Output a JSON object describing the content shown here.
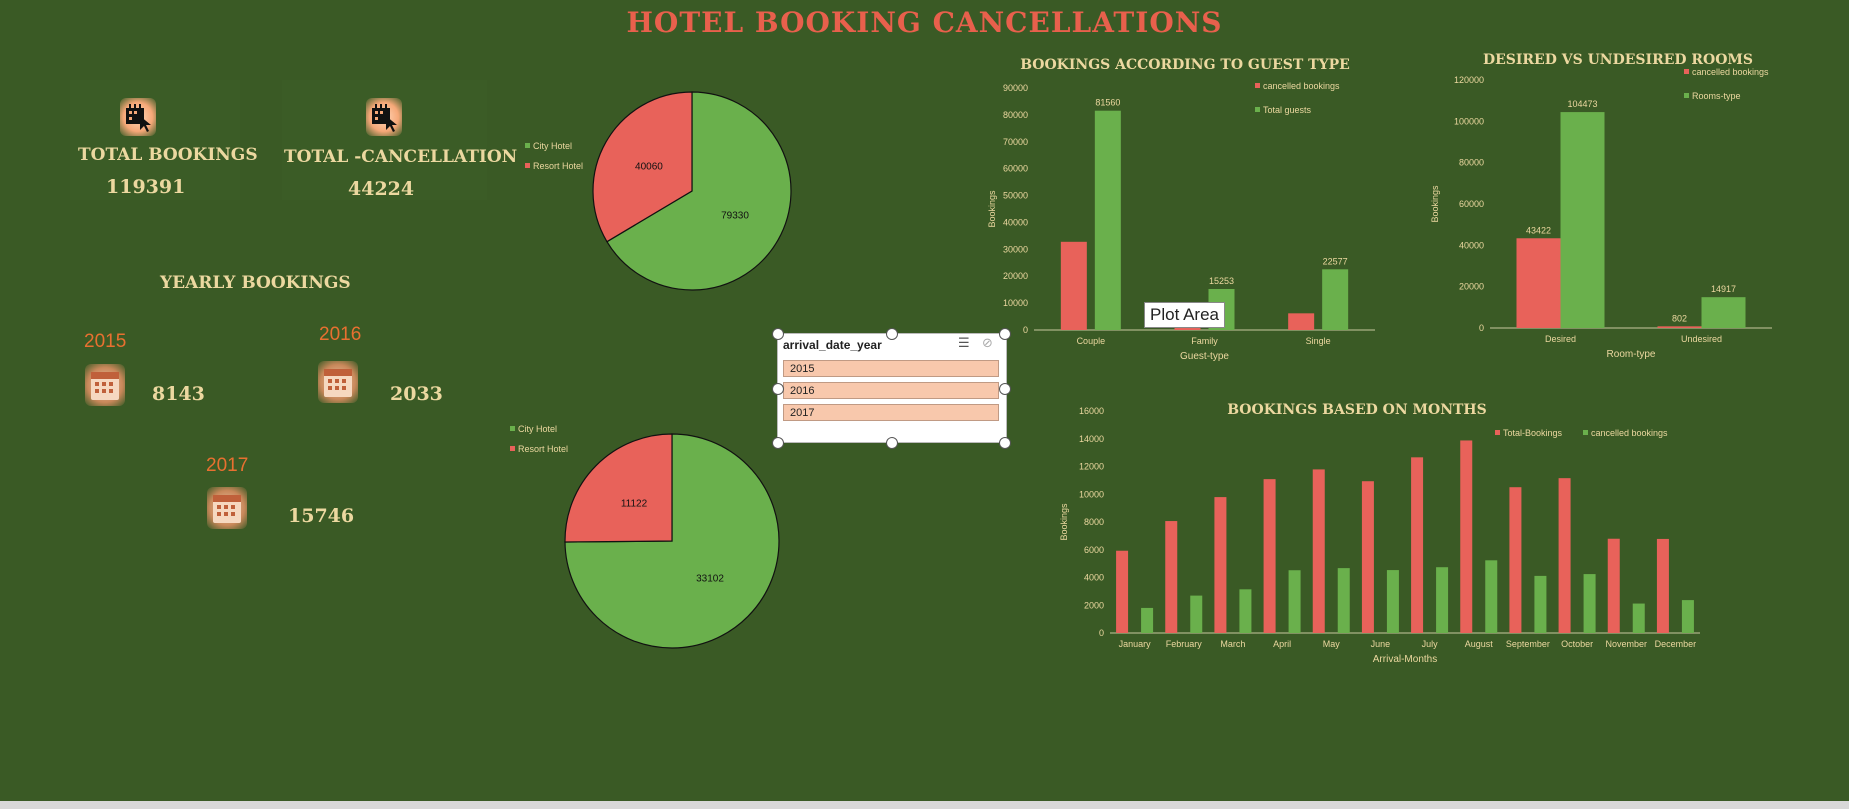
{
  "title": "HOTEL BOOKING CANCELLATIONS",
  "kpis": {
    "total_bookings_label": "TOTAL BOOKINGS",
    "total_bookings_value": "119391",
    "total_cancellation_label": "TOTAL -CANCELLATION",
    "total_cancellation_value": "44224"
  },
  "yearly": {
    "title": "YEARLY BOOKINGS",
    "items": [
      {
        "year": "2015",
        "value": "8143"
      },
      {
        "year": "2016",
        "value": "2033"
      },
      {
        "year": "2017",
        "value": "15746"
      }
    ]
  },
  "slicer": {
    "title": "arrival_date_year",
    "items": [
      "2015",
      "2016",
      "2017"
    ]
  },
  "tooltip": "Plot Area",
  "colors": {
    "red": "#e8625a",
    "green": "#6ab04c",
    "background": "#3a5a25",
    "title": "#e8604c",
    "label": "#ecd8a0"
  },
  "icons": {
    "kpi": "hotel-click-icon",
    "year": "calendar-icon"
  },
  "chart_data": [
    {
      "id": "pie1",
      "type": "pie",
      "legend": [
        "City Hotel",
        "Resort Hotel"
      ],
      "values": [
        79330,
        40060
      ],
      "colors": [
        "#6ab04c",
        "#e8625a"
      ],
      "labels": [
        "79330",
        "40060"
      ]
    },
    {
      "id": "pie2",
      "type": "pie",
      "legend": [
        "City Hotel",
        "Resort Hotel"
      ],
      "values": [
        33102,
        11122
      ],
      "colors": [
        "#6ab04c",
        "#e8625a"
      ],
      "labels": [
        "33102",
        "11122"
      ]
    },
    {
      "id": "guest",
      "type": "bar",
      "title": "BOOKINGS ACCORDING TO GUEST TYPE",
      "categories": [
        "Couple",
        "Family",
        "Single"
      ],
      "series": [
        {
          "name": "cancelled bookings",
          "values": [
            32800,
            2300,
            6200
          ],
          "color": "#e8625a",
          "labels": [
            "",
            "",
            ""
          ]
        },
        {
          "name": "Total guests",
          "values": [
            81560,
            15253,
            22577
          ],
          "color": "#6ab04c",
          "labels": [
            "81560",
            "15253",
            "22577"
          ]
        }
      ],
      "ylim": [
        0,
        90000
      ],
      "yticks": [
        "0",
        "10000",
        "20000",
        "30000",
        "40000",
        "50000",
        "60000",
        "70000",
        "80000",
        "90000"
      ],
      "xlabel": "Guest-type",
      "ylabel": "Bookings"
    },
    {
      "id": "rooms",
      "type": "bar",
      "title": "DESIRED VS UNDESIRED ROOMS",
      "categories": [
        "Desired",
        "Undesired"
      ],
      "series": [
        {
          "name": "cancelled bookings",
          "values": [
            43422,
            802
          ],
          "color": "#e8625a",
          "labels": [
            "43422",
            "802"
          ]
        },
        {
          "name": "Rooms-type",
          "values": [
            104473,
            14917
          ],
          "color": "#6ab04c",
          "labels": [
            "104473",
            "14917"
          ]
        }
      ],
      "ylim": [
        0,
        120000
      ],
      "yticks": [
        "0",
        "20000",
        "40000",
        "60000",
        "80000",
        "100000",
        "120000"
      ],
      "xlabel": "Room-type",
      "ylabel": "Bookings"
    },
    {
      "id": "months",
      "type": "bar",
      "title": "BOOKINGS BASED ON MONTHS",
      "categories": [
        "January",
        "February",
        "March",
        "April",
        "May",
        "June",
        "July",
        "August",
        "September",
        "October",
        "November",
        "December"
      ],
      "series": [
        {
          "name": "Total-Bookings",
          "values": [
            5929,
            8068,
            9794,
            11089,
            11791,
            10939,
            12661,
            13877,
            10508,
            11160,
            6794,
            6780
          ],
          "color": "#e8625a"
        },
        {
          "name": "cancelled bookings",
          "values": [
            1807,
            2696,
            3149,
            4524,
            4677,
            4535,
            4742,
            5239,
            4116,
            4246,
            2122,
            2371
          ],
          "color": "#6ab04c"
        }
      ],
      "ylim": [
        0,
        16000
      ],
      "yticks": [
        "0",
        "2000",
        "4000",
        "6000",
        "8000",
        "10000",
        "12000",
        "14000",
        "16000"
      ],
      "xlabel": "Arrival-Months",
      "ylabel": "Bookings"
    }
  ]
}
